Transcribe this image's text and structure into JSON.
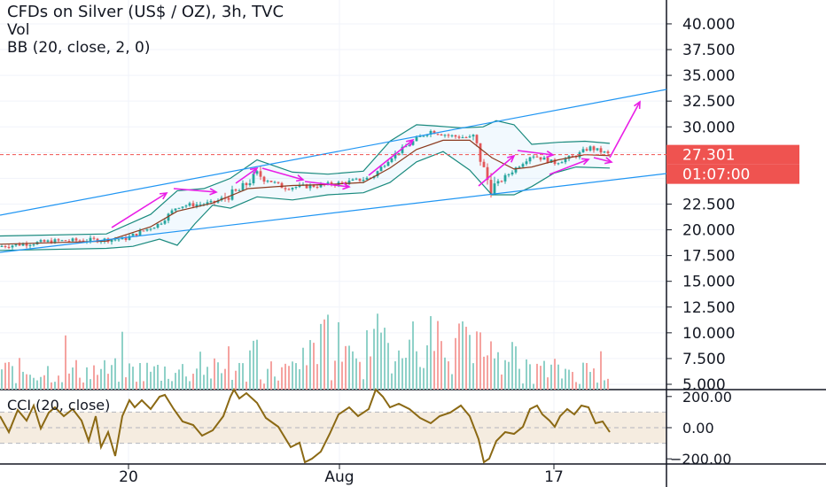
{
  "header": {
    "title": "CFDs on Silver (US$ / OZ), 3h, TVC",
    "vol_label": "Vol",
    "bb_label": "BB (20, close, 2, 0)",
    "cci_label": "CCI (20, close)"
  },
  "chart_data": [
    {
      "type": "candlestick",
      "title": "CFDs on Silver (US$ / OZ), 3h, TVC",
      "y_ticks": [
        "40.000",
        "37.500",
        "35.000",
        "32.500",
        "30.000",
        "25.000",
        "22.500",
        "20.000",
        "17.500",
        "15.000",
        "12.500",
        "10.000",
        "7.500",
        "5.000"
      ],
      "y_range": [
        5,
        40
      ],
      "x_ticks": [
        "20",
        "Aug",
        "17"
      ],
      "last_price": "27.301",
      "countdown": "01:07:00",
      "colors": {
        "up": "#26a69a",
        "down": "#ef5350",
        "bb_band": "#1a8a7e",
        "bb_basis": "#8b3a1e",
        "channel": "#2196f3",
        "arrows": "#e91ee6",
        "price_line": "#ef5350"
      }
    },
    {
      "type": "bar",
      "title": "Vol",
      "colors": {
        "up": "#8fd1c8",
        "down": "#f5a3a0"
      }
    },
    {
      "type": "line",
      "title": "CCI (20, close)",
      "y_ticks": [
        "200.00",
        "0.00",
        "−200.00"
      ],
      "y_range": [
        -200,
        200
      ],
      "band": [
        -100,
        100
      ],
      "colors": {
        "line": "#8b6914",
        "band": "#f5ece0"
      }
    }
  ]
}
